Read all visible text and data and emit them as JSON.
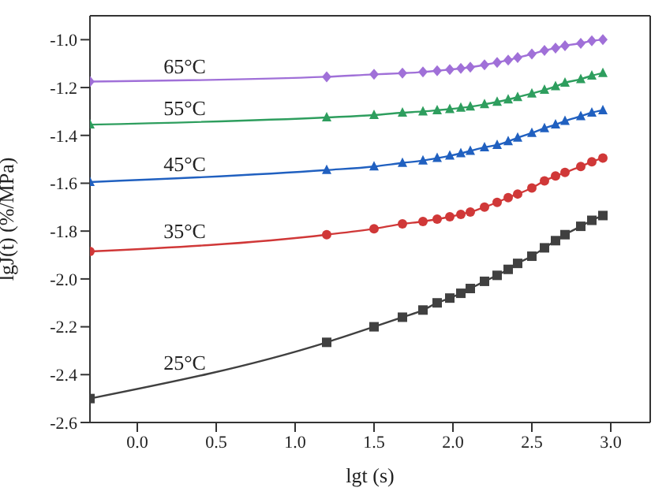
{
  "chart_data": {
    "type": "line",
    "xlabel": "lgt (s)",
    "ylabel": "lgJ(t) (%/MPa)",
    "x": [
      -0.3,
      1.2,
      1.5,
      1.68,
      1.81,
      1.9,
      1.98,
      2.05,
      2.11,
      2.2,
      2.28,
      2.35,
      2.41,
      2.5,
      2.58,
      2.65,
      2.71,
      2.81,
      2.88,
      2.95
    ],
    "series": [
      {
        "name": "65°C",
        "color": "#a070d8",
        "marker": "diamond",
        "values": [
          -1.175,
          -1.155,
          -1.145,
          -1.14,
          -1.135,
          -1.13,
          -1.125,
          -1.12,
          -1.115,
          -1.105,
          -1.095,
          -1.085,
          -1.075,
          -1.06,
          -1.045,
          -1.035,
          -1.025,
          -1.015,
          -1.005,
          -1.0
        ]
      },
      {
        "name": "55°C",
        "color": "#2e9e5e",
        "marker": "triangle",
        "values": [
          -1.355,
          -1.325,
          -1.315,
          -1.305,
          -1.3,
          -1.295,
          -1.29,
          -1.285,
          -1.28,
          -1.27,
          -1.26,
          -1.25,
          -1.24,
          -1.225,
          -1.21,
          -1.195,
          -1.18,
          -1.165,
          -1.15,
          -1.14
        ]
      },
      {
        "name": "45°C",
        "color": "#2060c0",
        "marker": "triangle",
        "values": [
          -1.595,
          -1.545,
          -1.53,
          -1.515,
          -1.505,
          -1.495,
          -1.485,
          -1.475,
          -1.465,
          -1.45,
          -1.44,
          -1.425,
          -1.41,
          -1.39,
          -1.37,
          -1.355,
          -1.34,
          -1.32,
          -1.305,
          -1.295
        ]
      },
      {
        "name": "35°C",
        "color": "#d03838",
        "marker": "circle",
        "values": [
          -1.885,
          -1.815,
          -1.79,
          -1.77,
          -1.76,
          -1.75,
          -1.74,
          -1.73,
          -1.72,
          -1.7,
          -1.68,
          -1.66,
          -1.645,
          -1.62,
          -1.59,
          -1.57,
          -1.555,
          -1.53,
          -1.51,
          -1.495
        ]
      },
      {
        "name": "25°C",
        "color": "#404040",
        "marker": "square",
        "values": [
          -2.5,
          -2.265,
          -2.2,
          -2.16,
          -2.13,
          -2.1,
          -2.08,
          -2.06,
          -2.04,
          -2.01,
          -1.985,
          -1.96,
          -1.935,
          -1.905,
          -1.87,
          -1.84,
          -1.815,
          -1.78,
          -1.755,
          -1.735
        ]
      }
    ],
    "xlim": [
      -0.3,
      3.25
    ],
    "xticks": [
      {
        "value": 0,
        "label": "0.0"
      },
      {
        "value": 0.5,
        "label": "0.5"
      },
      {
        "value": 1,
        "label": "1.0"
      },
      {
        "value": 1.5,
        "label": "1.5"
      },
      {
        "value": 2,
        "label": "2.0"
      },
      {
        "value": 2.5,
        "label": "2.5"
      },
      {
        "value": 3,
        "label": "3.0"
      }
    ],
    "ylim": [
      -2.6,
      -0.9
    ],
    "yticks": [
      {
        "value": -2.6,
        "label": "-2.6"
      },
      {
        "value": -2.4,
        "label": "-2.4"
      },
      {
        "value": -2.2,
        "label": "-2.2"
      },
      {
        "value": -2,
        "label": "-2.0"
      },
      {
        "value": -1.8,
        "label": "-1.8"
      },
      {
        "value": -1.6,
        "label": "-1.6"
      },
      {
        "value": -1.4,
        "label": "-1.4"
      },
      {
        "value": -1.2,
        "label": "-1.2"
      },
      {
        "value": -1,
        "label": "-1.0"
      }
    ],
    "grid": false,
    "legend": false,
    "line_style": "solid"
  }
}
